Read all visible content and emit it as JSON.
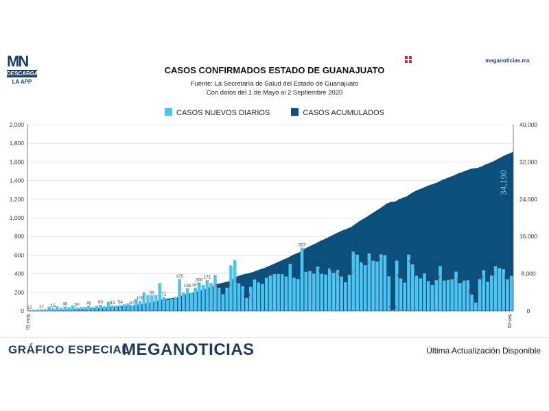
{
  "header": {
    "logo_top": "MN",
    "logo_band": "DESCARGA",
    "logo_app": "LA APP",
    "site": "meganoticias.mx",
    "title": "CASOS CONFIRMADOS ESTADO DE GUANAJUATO",
    "source": "Fuente: La Secretaría de Salud del Estado de Guanajuato",
    "date_range": "Con datos del 1 de Mayo al 2 Septiembre 2020"
  },
  "footer": {
    "left": "GRÁFICO ESPECIAL",
    "brand": "MEGANOTICIAS",
    "right": "Última Actualización Disponible"
  },
  "colors": {
    "daily": "#4fc3f0",
    "cumulative": "#0b4f7c",
    "brand_blue": "#1f3a5f",
    "brand_red": "#d2232a"
  },
  "chart_data": {
    "type": "bar",
    "title": "CASOS CONFIRMADOS ESTADO DE GUANAJUATO",
    "xlabel": "",
    "x_start": "01-may",
    "x_end": "02-sep",
    "legend_position": "top-center",
    "y_left": {
      "label": "",
      "lim": [
        0,
        2000
      ],
      "ticks": [
        "0",
        "200",
        "400",
        "600",
        "800",
        "1,000",
        "1,200",
        "1,400",
        "1,600",
        "1,800",
        "2,000"
      ]
    },
    "y_right": {
      "label": "",
      "lim": [
        0,
        40000
      ],
      "ticks": [
        "0",
        "8,000",
        "16,000",
        "24,000",
        "32,000",
        "40,000"
      ]
    },
    "series": [
      {
        "name": "CASOS NUEVOS DIARIOS",
        "type": "bar",
        "axis": "left",
        "values": [
          12,
          12,
          15,
          18,
          20,
          46,
          30,
          50,
          35,
          48,
          40,
          60,
          40,
          43,
          45,
          54,
          42,
          55,
          67,
          50,
          100,
          60,
          58,
          65,
          72,
          80,
          60,
          125,
          110,
          199,
          170,
          167,
          171,
          300,
          150,
          120,
          130,
          150,
          344,
          200,
          244,
          190,
          250,
          306,
          280,
          334,
          300,
          387,
          250,
          180,
          250,
          488,
          547,
          298,
          267,
          140,
          260,
          338,
          307,
          290,
          357,
          380,
          398,
          398,
          395,
          370,
          505,
          356,
          344,
          680,
          420,
          429,
          402,
          476,
          400,
          390,
          458,
          410,
          442,
          370,
          309,
          388,
          640,
          604,
          524,
          492,
          617,
          540,
          531,
          608,
          600,
          372,
          10,
          541,
          350,
          305,
          605,
          500,
          378,
          350,
          404,
          320,
          279,
          330,
          483,
          326,
          333,
          340,
          423,
          300,
          326,
          330,
          176,
          90,
          342,
          438,
          313,
          380,
          481,
          460,
          449,
          340,
          377
        ],
        "data_labels": [
          [
            0,
            "12"
          ],
          [
            3,
            "12"
          ],
          [
            6,
            "15"
          ],
          [
            9,
            "46"
          ],
          [
            12,
            "50"
          ],
          [
            15,
            "48"
          ],
          [
            18,
            "60"
          ],
          [
            21,
            "43"
          ],
          [
            23,
            "54"
          ],
          [
            26,
            "67"
          ],
          [
            28,
            "100"
          ],
          [
            31,
            "58"
          ],
          [
            34,
            "72"
          ],
          [
            38,
            "125"
          ],
          [
            40,
            "199"
          ],
          [
            42,
            "167"
          ],
          [
            43,
            "300"
          ],
          [
            45,
            "171"
          ],
          [
            48,
            "344"
          ],
          [
            50,
            "244"
          ],
          [
            53,
            "306"
          ],
          [
            55,
            "334"
          ],
          [
            57,
            "387"
          ],
          [
            61,
            "488"
          ],
          [
            62,
            "547"
          ],
          [
            66,
            "338"
          ],
          [
            69,
            "357"
          ],
          [
            71,
            "398"
          ],
          [
            74,
            "505"
          ],
          [
            77,
            "680"
          ],
          [
            79,
            "429"
          ],
          [
            81,
            "476"
          ],
          [
            83,
            "458"
          ],
          [
            85,
            "442"
          ],
          [
            88,
            "604"
          ],
          [
            90,
            "617"
          ],
          [
            92,
            "608"
          ],
          [
            94,
            "541"
          ],
          [
            97,
            "605"
          ],
          [
            100,
            "404"
          ],
          [
            103,
            "483"
          ],
          [
            106,
            "423"
          ],
          [
            109,
            "330"
          ],
          [
            112,
            "342"
          ],
          [
            114,
            "438"
          ],
          [
            117,
            "481"
          ],
          [
            119,
            "449"
          ],
          [
            121,
            "377"
          ]
        ]
      },
      {
        "name": "CASOS ACUMULADOS",
        "type": "area",
        "axis": "right",
        "end_label": "34,190"
      }
    ]
  }
}
